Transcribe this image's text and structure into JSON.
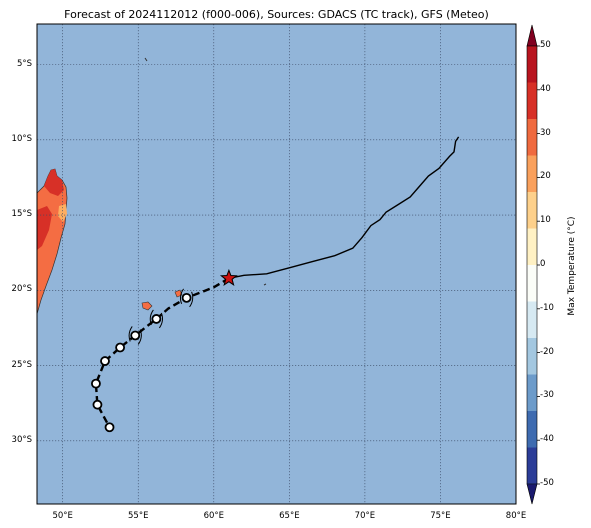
{
  "map": {
    "title": "Forecast of 2024112012 (f000-006), Sources: GDACS (TC track), GFS (Meteo)",
    "lat_labels": [
      "5°S",
      "10°S",
      "15°S",
      "20°S",
      "25°S",
      "30°S"
    ],
    "lon_labels": [
      "50°E",
      "55°E",
      "60°E",
      "65°E",
      "70°E",
      "75°E",
      "80°E"
    ],
    "lon_range": [
      48.3,
      80
    ],
    "lat_range": [
      -34.2,
      -2.3
    ],
    "ocean_color": "#92b5d9",
    "gridlines": true,
    "colorbar": {
      "title": "Max Temperature (°C)",
      "ticks": [
        "50",
        "40",
        "30",
        "20",
        "10",
        "0",
        "-10",
        "-20",
        "-30",
        "-40",
        "-50"
      ],
      "colors": [
        "#1a1a6e",
        "#2b3c97",
        "#3e6bb0",
        "#6c9bca",
        "#a3c7e0",
        "#d6e9f2",
        "#fbfdf8",
        "#fff1c4",
        "#fdd08b",
        "#f9a05c",
        "#ef6a3f",
        "#d73027",
        "#b8141f",
        "#800020"
      ],
      "extend": "both"
    },
    "track": {
      "observed_path": [
        [
          61.0,
          -19.2
        ],
        [
          62.0,
          -19.0
        ],
        [
          63.5,
          -18.9
        ],
        [
          65.0,
          -18.5
        ],
        [
          66.5,
          -18.1
        ],
        [
          68.0,
          -17.7
        ],
        [
          69.2,
          -17.2
        ],
        [
          69.8,
          -16.5
        ],
        [
          70.4,
          -15.7
        ],
        [
          71.0,
          -15.3
        ],
        [
          71.4,
          -14.8
        ],
        [
          72.2,
          -14.3
        ],
        [
          73.0,
          -13.8
        ],
        [
          73.6,
          -13.1
        ],
        [
          74.2,
          -12.4
        ],
        [
          74.9,
          -11.9
        ],
        [
          75.6,
          -11.1
        ],
        [
          75.9,
          -10.8
        ],
        [
          76.0,
          -10.1
        ],
        [
          76.2,
          -9.8
        ]
      ],
      "forecast_path": [
        [
          61.0,
          -19.2
        ],
        [
          60.0,
          -19.8
        ],
        [
          58.2,
          -20.5
        ],
        [
          57.0,
          -21.2
        ],
        [
          56.2,
          -21.9
        ],
        [
          54.8,
          -23.0
        ],
        [
          53.8,
          -23.8
        ],
        [
          52.8,
          -24.7
        ],
        [
          52.2,
          -26.2
        ],
        [
          52.3,
          -27.6
        ],
        [
          53.1,
          -29.1
        ]
      ],
      "current_position": [
        61.0,
        -19.2
      ],
      "forecast_points": [
        [
          58.2,
          -20.5
        ],
        [
          56.2,
          -21.9
        ],
        [
          54.8,
          -23.0
        ],
        [
          53.8,
          -23.8
        ],
        [
          52.8,
          -24.7
        ],
        [
          52.2,
          -26.2
        ],
        [
          52.3,
          -27.6
        ],
        [
          53.1,
          -29.1
        ]
      ],
      "cyclone_symbols": [
        [
          58.2,
          -20.5
        ],
        [
          56.2,
          -21.9
        ],
        [
          54.8,
          -23.0
        ]
      ]
    }
  }
}
